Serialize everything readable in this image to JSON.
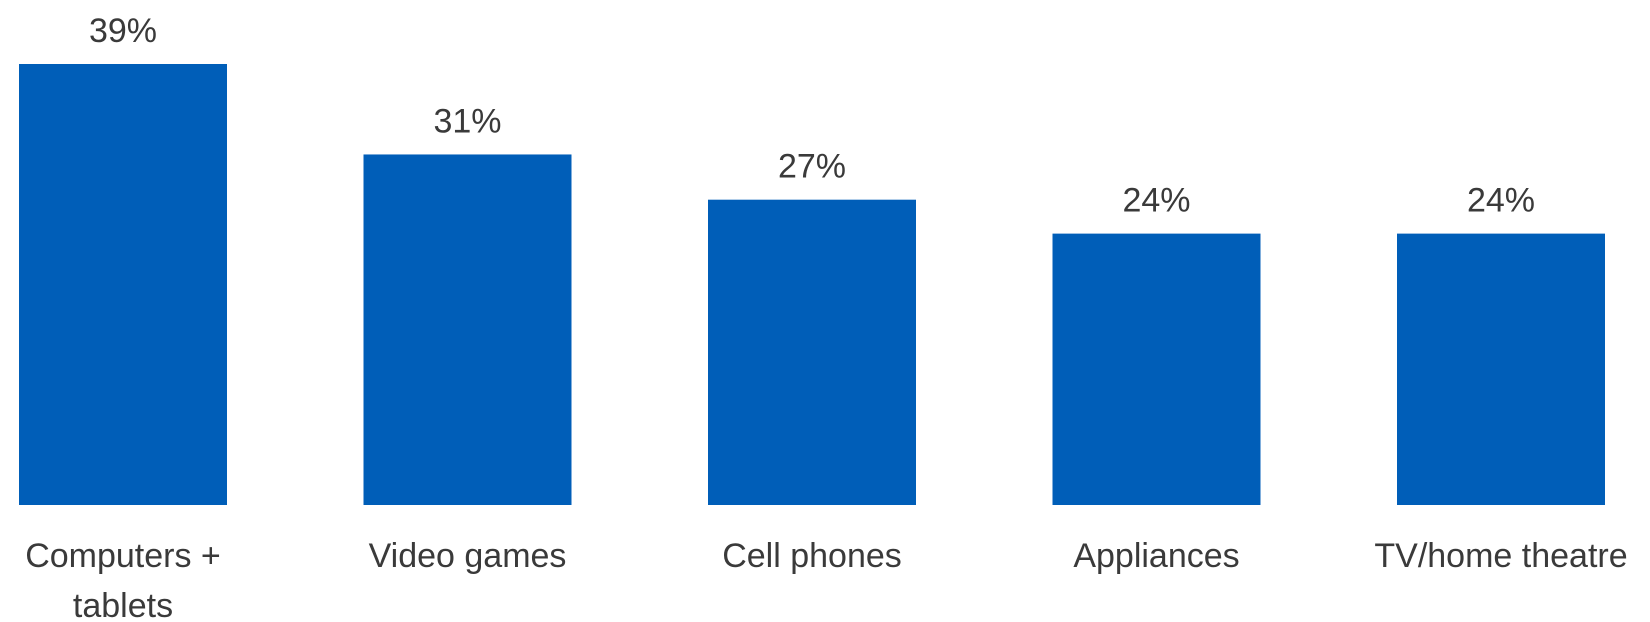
{
  "chart_data": {
    "type": "bar",
    "categories": [
      [
        "Computers +",
        "tablets"
      ],
      [
        "Video games"
      ],
      [
        "Cell phones"
      ],
      [
        "Appliances"
      ],
      [
        "TV/home theatre"
      ]
    ],
    "values": [
      39,
      31,
      27,
      24,
      24
    ],
    "value_labels": [
      "39%",
      "31%",
      "27%",
      "24%",
      "24%"
    ],
    "ylim": [
      0,
      39
    ],
    "grid": false,
    "legend": "none",
    "bar_color": "#005EB8"
  }
}
